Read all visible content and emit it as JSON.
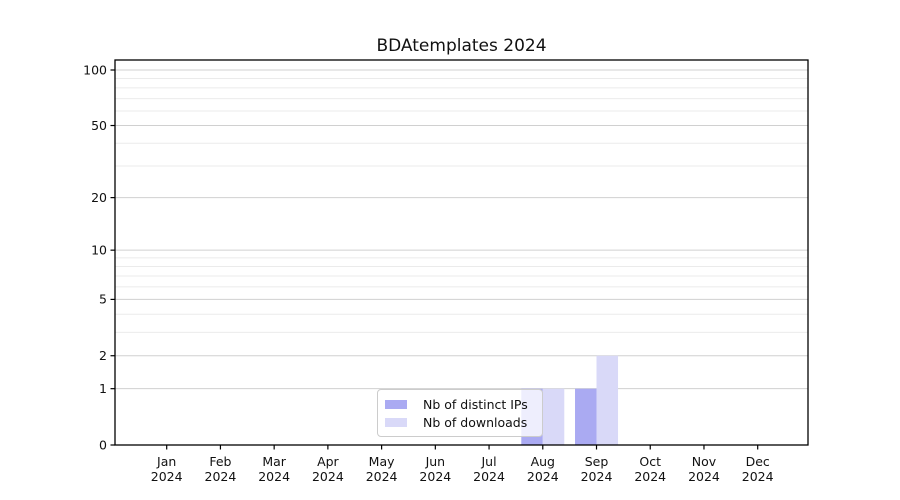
{
  "chart_data": {
    "type": "bar",
    "title": "BDAtemplates 2024",
    "categories": [
      {
        "label": "Jan",
        "sublabel": "2024"
      },
      {
        "label": "Feb",
        "sublabel": "2024"
      },
      {
        "label": "Mar",
        "sublabel": "2024"
      },
      {
        "label": "Apr",
        "sublabel": "2024"
      },
      {
        "label": "May",
        "sublabel": "2024"
      },
      {
        "label": "Jun",
        "sublabel": "2024"
      },
      {
        "label": "Jul",
        "sublabel": "2024"
      },
      {
        "label": "Aug",
        "sublabel": "2024"
      },
      {
        "label": "Sep",
        "sublabel": "2024"
      },
      {
        "label": "Oct",
        "sublabel": "2024"
      },
      {
        "label": "Nov",
        "sublabel": "2024"
      },
      {
        "label": "Dec",
        "sublabel": "2024"
      }
    ],
    "series": [
      {
        "name": "Nb of distinct IPs",
        "color": "#aaaaf2",
        "values": [
          0,
          0,
          0,
          0,
          0,
          0,
          0,
          1,
          1,
          0,
          0,
          0
        ]
      },
      {
        "name": "Nb of downloads",
        "color": "#d9d9f8",
        "values": [
          0,
          0,
          0,
          0,
          0,
          0,
          0,
          1,
          2,
          0,
          0,
          0
        ]
      }
    ],
    "y_scale": "log1p",
    "y_tick_values": [
      0,
      1,
      2,
      5,
      10,
      20,
      50,
      100
    ],
    "y_tick_labels": [
      "0",
      "1",
      "2",
      "5",
      "10",
      "20",
      "50",
      "100"
    ],
    "y_minor_gridline_values": [
      3,
      4,
      6,
      7,
      8,
      9,
      30,
      40,
      60,
      70,
      80,
      90
    ],
    "ylim": [
      0,
      113
    ],
    "grid": "horizontal",
    "legend_position": "lower-center",
    "colors": {
      "major_grid": "#d0d0d0",
      "minor_grid": "#ebebeb",
      "axis": "#000000",
      "text": "#111111",
      "background": "#ffffff"
    }
  }
}
